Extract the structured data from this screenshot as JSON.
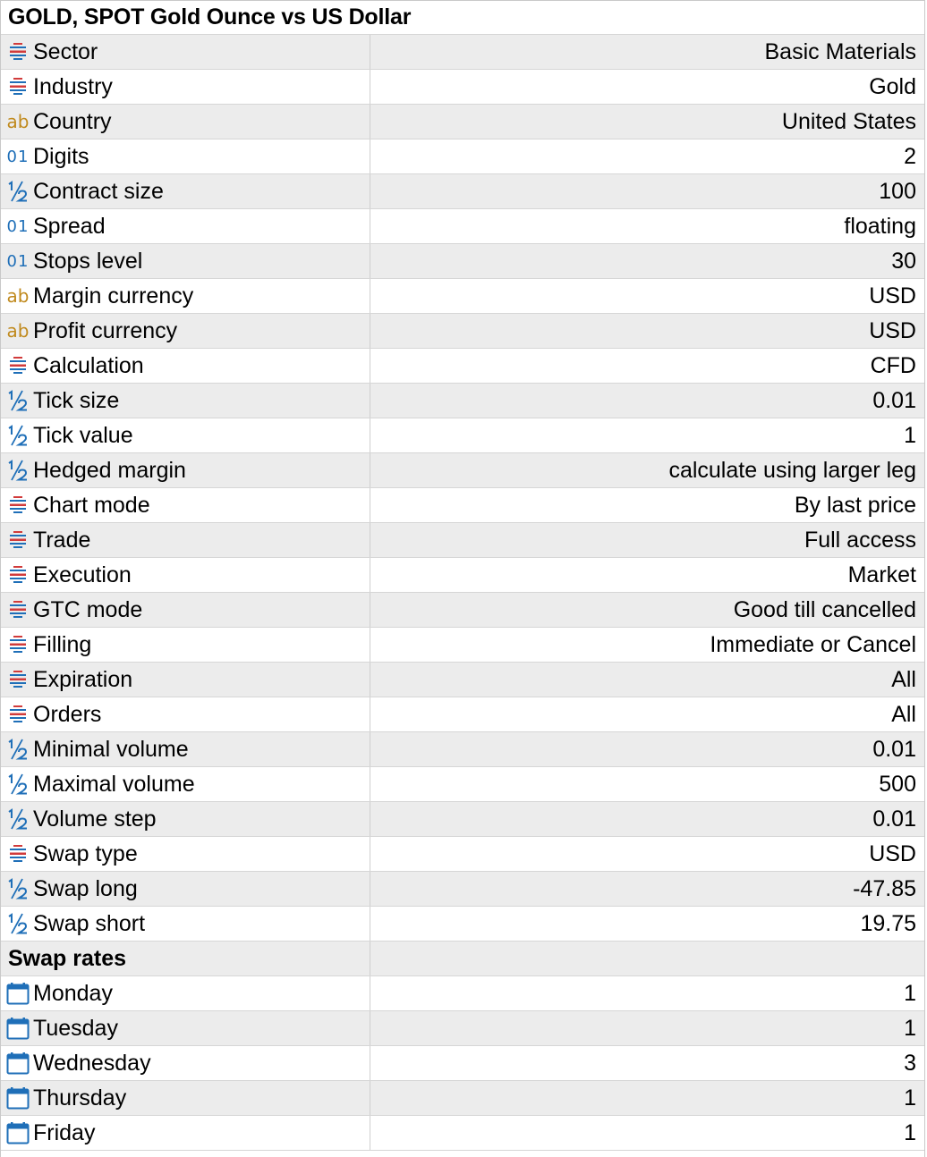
{
  "window": {
    "title": "GOLD, SPOT Gold Ounce vs US Dollar"
  },
  "colors": {
    "row_shaded": "#ececec",
    "row_white": "#ffffff",
    "icon_blue": "#1f6fb8",
    "icon_red": "#d13b3b",
    "icon_gold": "#c08a1e"
  },
  "rows": [
    {
      "icon": "enum-icon",
      "name": "Sector",
      "value": "Basic Materials"
    },
    {
      "icon": "enum-icon",
      "name": "Industry",
      "value": "Gold"
    },
    {
      "icon": "string-icon",
      "name": "Country",
      "value": "United States"
    },
    {
      "icon": "integer-icon",
      "name": "Digits",
      "value": "2"
    },
    {
      "icon": "fraction-icon",
      "name": "Contract size",
      "value": "100"
    },
    {
      "icon": "integer-icon",
      "name": "Spread",
      "value": "floating"
    },
    {
      "icon": "integer-icon",
      "name": "Stops level",
      "value": "30"
    },
    {
      "icon": "string-icon",
      "name": "Margin currency",
      "value": "USD"
    },
    {
      "icon": "string-icon",
      "name": "Profit currency",
      "value": "USD"
    },
    {
      "icon": "enum-icon",
      "name": "Calculation",
      "value": "CFD"
    },
    {
      "icon": "fraction-icon",
      "name": "Tick size",
      "value": "0.01"
    },
    {
      "icon": "fraction-icon",
      "name": "Tick value",
      "value": "1"
    },
    {
      "icon": "fraction-icon",
      "name": "Hedged margin",
      "value": "calculate using larger leg"
    },
    {
      "icon": "enum-icon",
      "name": "Chart mode",
      "value": "By last price"
    },
    {
      "icon": "enum-icon",
      "name": "Trade",
      "value": "Full access"
    },
    {
      "icon": "enum-icon",
      "name": "Execution",
      "value": "Market"
    },
    {
      "icon": "enum-icon",
      "name": "GTC mode",
      "value": "Good till cancelled"
    },
    {
      "icon": "enum-icon",
      "name": "Filling",
      "value": "Immediate or Cancel"
    },
    {
      "icon": "enum-icon",
      "name": "Expiration",
      "value": "All"
    },
    {
      "icon": "enum-icon",
      "name": "Orders",
      "value": "All"
    },
    {
      "icon": "fraction-icon",
      "name": "Minimal volume",
      "value": "0.01"
    },
    {
      "icon": "fraction-icon",
      "name": "Maximal volume",
      "value": "500"
    },
    {
      "icon": "fraction-icon",
      "name": "Volume step",
      "value": "0.01"
    },
    {
      "icon": "enum-icon",
      "name": "Swap type",
      "value": "USD"
    },
    {
      "icon": "fraction-icon",
      "name": "Swap long",
      "value": "-47.85"
    },
    {
      "icon": "fraction-icon",
      "name": "Swap short",
      "value": "19.75"
    }
  ],
  "swap_rates": {
    "heading": "Swap rates",
    "days": [
      {
        "icon": "calendar-icon",
        "name": "Monday",
        "value": "1"
      },
      {
        "icon": "calendar-icon",
        "name": "Tuesday",
        "value": "1"
      },
      {
        "icon": "calendar-icon",
        "name": "Wednesday",
        "value": "3"
      },
      {
        "icon": "calendar-icon",
        "name": "Thursday",
        "value": "1"
      },
      {
        "icon": "calendar-icon",
        "name": "Friday",
        "value": "1"
      }
    ]
  }
}
